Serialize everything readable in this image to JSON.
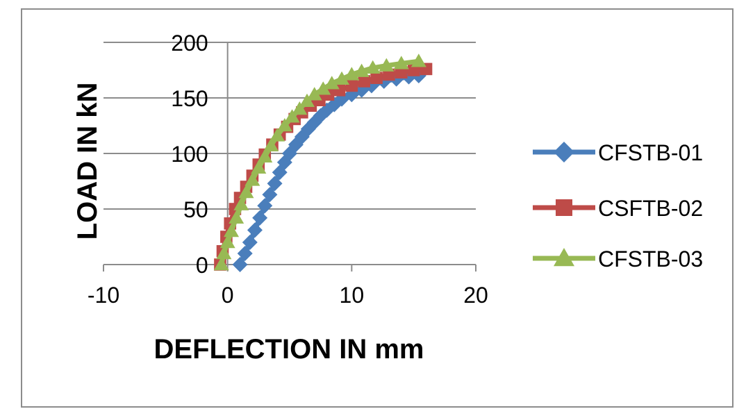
{
  "chart_data": {
    "type": "line",
    "title": "",
    "xlabel": "DEFLECTION IN mm",
    "ylabel": "LOAD IN kN",
    "xlim": [
      -10,
      20
    ],
    "ylim": [
      0,
      200
    ],
    "xticks": [
      -10,
      0,
      10,
      20
    ],
    "yticks": [
      0,
      50,
      100,
      150,
      200
    ],
    "grid": "horizontal major gridlines",
    "legend_position": "right",
    "series": [
      {
        "name": "CFSTB-01",
        "color": "#4a7ebb",
        "marker": "diamond",
        "x": [
          1.0,
          1.4,
          1.8,
          2.2,
          2.6,
          3.0,
          3.4,
          3.8,
          4.2,
          4.6,
          5.0,
          5.5,
          6.0,
          6.5,
          7.0,
          7.5,
          8.0,
          8.6,
          9.2,
          10.0,
          10.8,
          11.6,
          12.6,
          13.6,
          14.6,
          15.4
        ],
        "y": [
          0,
          10,
          20,
          31,
          42,
          53,
          63,
          73,
          83,
          92,
          100,
          108,
          115,
          122,
          128,
          134,
          139,
          144,
          149,
          153,
          157,
          161,
          165,
          167,
          169,
          170
        ]
      },
      {
        "name": "CSFTB-02",
        "color": "#be4b48",
        "marker": "square",
        "x": [
          -0.6,
          -0.4,
          -0.1,
          0.2,
          0.6,
          1.0,
          1.5,
          2.0,
          2.5,
          3.0,
          3.6,
          4.2,
          4.8,
          5.4,
          6.0,
          6.7,
          7.4,
          8.1,
          9.0,
          10.0,
          11.0,
          12.0,
          13.0,
          14.0,
          15.0,
          16.0
        ],
        "y": [
          0,
          12,
          25,
          37,
          50,
          60,
          70,
          80,
          90,
          99,
          108,
          117,
          124,
          131,
          137,
          143,
          148,
          153,
          157,
          161,
          165,
          168,
          171,
          173,
          175,
          176
        ]
      },
      {
        "name": "CFSTB-03",
        "color": "#98b954",
        "marker": "triangle",
        "x": [
          -0.5,
          -0.3,
          0.0,
          0.3,
          0.7,
          1.1,
          1.5,
          2.0,
          2.5,
          3.0,
          3.5,
          4.0,
          4.6,
          5.2,
          5.8,
          6.4,
          7.0,
          7.7,
          8.4,
          9.2,
          10.0,
          10.8,
          11.7,
          12.8,
          14.0,
          15.4
        ],
        "y": [
          0,
          10,
          20,
          30,
          42,
          54,
          65,
          76,
          87,
          97,
          107,
          116,
          125,
          133,
          140,
          147,
          153,
          158,
          163,
          167,
          171,
          174,
          177,
          179,
          181,
          183
        ]
      }
    ]
  }
}
